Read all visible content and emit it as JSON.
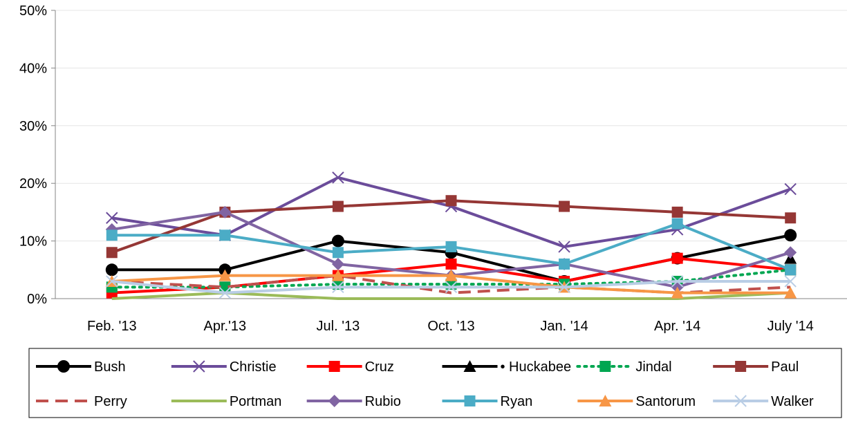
{
  "chart_data": {
    "type": "line",
    "title": "",
    "xlabel": "",
    "ylabel": "",
    "categories": [
      "Feb. '13",
      "Apr.'13",
      "Jul. '13",
      "Oct. '13",
      "Jan. '14",
      "Apr. '14",
      "July '14"
    ],
    "ylim": [
      0,
      50
    ],
    "yticks": [
      "0%",
      "10%",
      "20%",
      "30%",
      "40%",
      "50%"
    ],
    "grid": true,
    "legend_position": "bottom",
    "series": [
      {
        "name": "Bush",
        "values": [
          5,
          5,
          10,
          8,
          3,
          7,
          11
        ],
        "color": "#000000",
        "marker": "circle",
        "dash": "solid"
      },
      {
        "name": "Christie",
        "values": [
          14,
          11,
          21,
          16,
          9,
          12,
          19
        ],
        "color": "#6B4C9A",
        "marker": "x",
        "dash": "solid"
      },
      {
        "name": "Cruz",
        "values": [
          1,
          2,
          4,
          6,
          3,
          7,
          5
        ],
        "color": "#FF0000",
        "marker": "square",
        "dash": "solid"
      },
      {
        "name": "Huckabee",
        "legend_prefix": "•",
        "values": [
          null,
          null,
          null,
          null,
          null,
          null,
          7
        ],
        "color": "#000000",
        "marker": "triangle",
        "dash": "solid"
      },
      {
        "name": "Jindal",
        "values": [
          2,
          2,
          2.5,
          2.5,
          2.5,
          3,
          5
        ],
        "color": "#00A651",
        "marker": "square",
        "dash": "dotted"
      },
      {
        "name": "Paul",
        "values": [
          8,
          15,
          16,
          17,
          16,
          15,
          14
        ],
        "color": "#953735",
        "marker": "square",
        "dash": "solid"
      },
      {
        "name": "Perry",
        "values": [
          3,
          2,
          4,
          1,
          2,
          1,
          2
        ],
        "color": "#C0504D",
        "marker": "none",
        "dash": "dashed"
      },
      {
        "name": "Portman",
        "values": [
          0,
          1,
          0,
          0,
          0,
          0,
          1
        ],
        "color": "#9BBB59",
        "marker": "none",
        "dash": "solid"
      },
      {
        "name": "Rubio",
        "values": [
          12,
          15,
          6,
          4,
          6,
          2,
          8
        ],
        "color": "#8064A2",
        "marker": "diamond",
        "dash": "solid"
      },
      {
        "name": "Ryan",
        "values": [
          11,
          11,
          8,
          9,
          6,
          13,
          5
        ],
        "color": "#4BACC6",
        "marker": "square",
        "dash": "solid"
      },
      {
        "name": "Santorum",
        "values": [
          3,
          4,
          4,
          4,
          2,
          1,
          1
        ],
        "color": "#F79646",
        "marker": "triangle",
        "dash": "solid"
      },
      {
        "name": "Walker",
        "values": [
          3,
          1,
          2,
          2,
          2,
          3,
          3
        ],
        "color": "#B9CDE5",
        "marker": "x",
        "dash": "solid"
      }
    ]
  }
}
